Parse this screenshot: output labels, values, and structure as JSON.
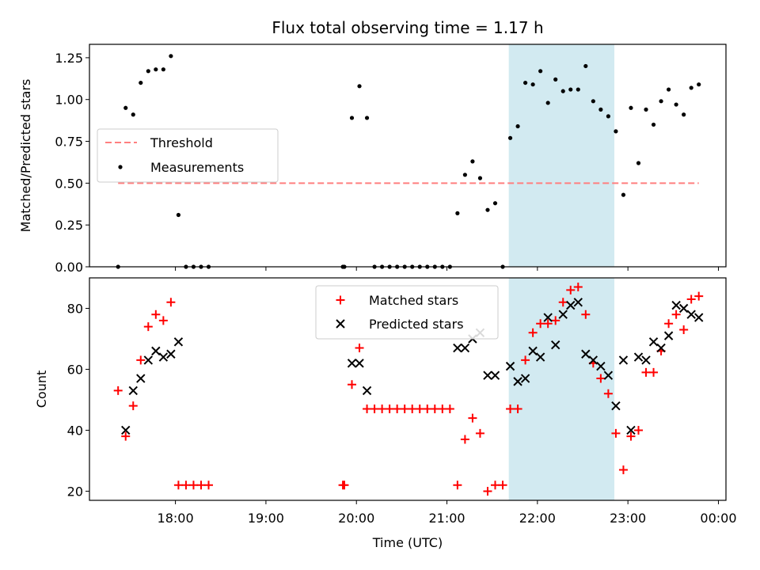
{
  "title": "Flux total observing time = 1.17 h",
  "colors": {
    "threshold": "#ff7f7f",
    "measurements": "#000000",
    "matched": "#ff0000",
    "predicted": "#000000",
    "highlight": "#add8e6"
  },
  "chart_data": [
    {
      "type": "scatter",
      "ylabel": "Matched/Predicted stars",
      "xlim": [
        "17:03",
        "00:05"
      ],
      "ylim": [
        0,
        1.33
      ],
      "yticks": [
        "0.00",
        "0.25",
        "0.50",
        "0.75",
        "1.00",
        "1.25"
      ],
      "highlight_span": [
        "21:41",
        "22:51"
      ],
      "legend": {
        "placement": "center-left",
        "entries": [
          "Threshold",
          "Measurements"
        ]
      },
      "series": [
        {
          "name": "Threshold",
          "kind": "dashed-line",
          "x": [
            "17:22",
            "23:47"
          ],
          "y": [
            0.5,
            0.5
          ]
        },
        {
          "name": "Measurements",
          "kind": "points",
          "x": [
            "17:22",
            "17:27",
            "17:32",
            "17:37",
            "17:42",
            "17:47",
            "17:52",
            "17:57",
            "18:02",
            "18:07",
            "18:12",
            "18:17",
            "18:22",
            "19:51",
            "19:52",
            "19:57",
            "20:02",
            "20:07",
            "20:12",
            "20:17",
            "20:22",
            "20:27",
            "20:32",
            "20:37",
            "20:42",
            "20:47",
            "20:52",
            "20:57",
            "21:02",
            "21:07",
            "21:12",
            "21:17",
            "21:22",
            "21:27",
            "21:32",
            "21:37",
            "21:42",
            "21:47",
            "21:52",
            "21:57",
            "22:02",
            "22:07",
            "22:12",
            "22:17",
            "22:22",
            "22:27",
            "22:32",
            "22:37",
            "22:42",
            "22:47",
            "22:52",
            "22:57",
            "23:02",
            "23:07",
            "23:12",
            "23:17",
            "23:22",
            "23:27",
            "23:32",
            "23:37",
            "23:42",
            "23:47"
          ],
          "y": [
            0.0,
            0.95,
            0.91,
            1.1,
            1.17,
            1.18,
            1.18,
            1.26,
            0.31,
            0.0,
            0.0,
            0.0,
            0.0,
            0.0,
            0.0,
            0.89,
            1.08,
            0.89,
            0.0,
            0.0,
            0.0,
            0.0,
            0.0,
            0.0,
            0.0,
            0.0,
            0.0,
            0.0,
            0.0,
            0.32,
            0.55,
            0.63,
            0.53,
            0.34,
            0.38,
            0.0,
            0.77,
            0.84,
            1.1,
            1.09,
            1.17,
            0.98,
            1.12,
            1.05,
            1.06,
            1.06,
            1.2,
            0.99,
            0.94,
            0.9,
            0.81,
            0.43,
            0.95,
            0.62,
            0.94,
            0.85,
            0.99,
            1.06,
            0.97,
            0.91,
            1.07,
            1.09
          ]
        }
      ]
    },
    {
      "type": "scatter",
      "ylabel": "Count",
      "xlabel": "Time (UTC)",
      "xlim": [
        "17:03",
        "00:05"
      ],
      "ylim": [
        17,
        90
      ],
      "xticks": [
        "18:00",
        "19:00",
        "20:00",
        "21:00",
        "22:00",
        "23:00",
        "00:00"
      ],
      "yticks": [
        "20",
        "40",
        "60",
        "80"
      ],
      "highlight_span": [
        "21:41",
        "22:51"
      ],
      "legend": {
        "placement": "upper-center",
        "entries": [
          "Matched stars",
          "Predicted stars"
        ]
      },
      "series": [
        {
          "name": "Matched stars",
          "marker": "plus",
          "x": [
            "17:22",
            "17:27",
            "17:32",
            "17:37",
            "17:42",
            "17:47",
            "17:52",
            "17:57",
            "18:02",
            "18:07",
            "18:12",
            "18:17",
            "18:22",
            "19:51",
            "19:52",
            "19:57",
            "20:02",
            "20:07",
            "20:12",
            "20:17",
            "20:22",
            "20:27",
            "20:32",
            "20:37",
            "20:42",
            "20:47",
            "20:52",
            "20:57",
            "21:02",
            "21:07",
            "21:12",
            "21:17",
            "21:22",
            "21:27",
            "21:32",
            "21:37",
            "21:42",
            "21:47",
            "21:52",
            "21:57",
            "22:02",
            "22:07",
            "22:12",
            "22:17",
            "22:22",
            "22:27",
            "22:32",
            "22:37",
            "22:42",
            "22:47",
            "22:52",
            "22:57",
            "23:02",
            "23:07",
            "23:12",
            "23:17",
            "23:22",
            "23:27",
            "23:32",
            "23:37",
            "23:42",
            "23:47"
          ],
          "y": [
            53,
            38,
            48,
            63,
            74,
            78,
            76,
            82,
            22,
            22,
            22,
            22,
            22,
            22,
            22,
            55,
            67,
            47,
            47,
            47,
            47,
            47,
            47,
            47,
            47,
            47,
            47,
            47,
            47,
            22,
            37,
            44,
            39,
            20,
            22,
            22,
            47,
            47,
            63,
            72,
            75,
            75,
            76,
            82,
            86,
            87,
            78,
            62,
            57,
            52,
            39,
            27,
            38,
            40,
            59,
            59,
            66,
            75,
            78,
            73,
            83,
            84
          ]
        },
        {
          "name": "Predicted stars",
          "marker": "x",
          "x": [
            "17:27",
            "17:32",
            "17:37",
            "17:42",
            "17:47",
            "17:52",
            "17:57",
            "18:02",
            "19:57",
            "20:02",
            "20:07",
            "21:07",
            "21:12",
            "21:17",
            "21:22",
            "21:27",
            "21:32",
            "21:42",
            "21:47",
            "21:52",
            "21:57",
            "22:02",
            "22:07",
            "22:12",
            "22:17",
            "22:22",
            "22:27",
            "22:32",
            "22:37",
            "22:42",
            "22:47",
            "22:52",
            "22:57",
            "23:02",
            "23:07",
            "23:12",
            "23:17",
            "23:22",
            "23:27",
            "23:32",
            "23:37",
            "23:42",
            "23:47"
          ],
          "y": [
            40,
            53,
            57,
            63,
            66,
            64,
            65,
            69,
            62,
            62,
            53,
            67,
            67,
            70,
            72,
            58,
            58,
            61,
            56,
            57,
            66,
            64,
            77,
            68,
            78,
            81,
            82,
            65,
            63,
            61,
            58,
            48,
            63,
            40,
            64,
            63,
            69,
            67,
            71,
            81,
            80,
            78,
            77
          ]
        }
      ]
    }
  ]
}
